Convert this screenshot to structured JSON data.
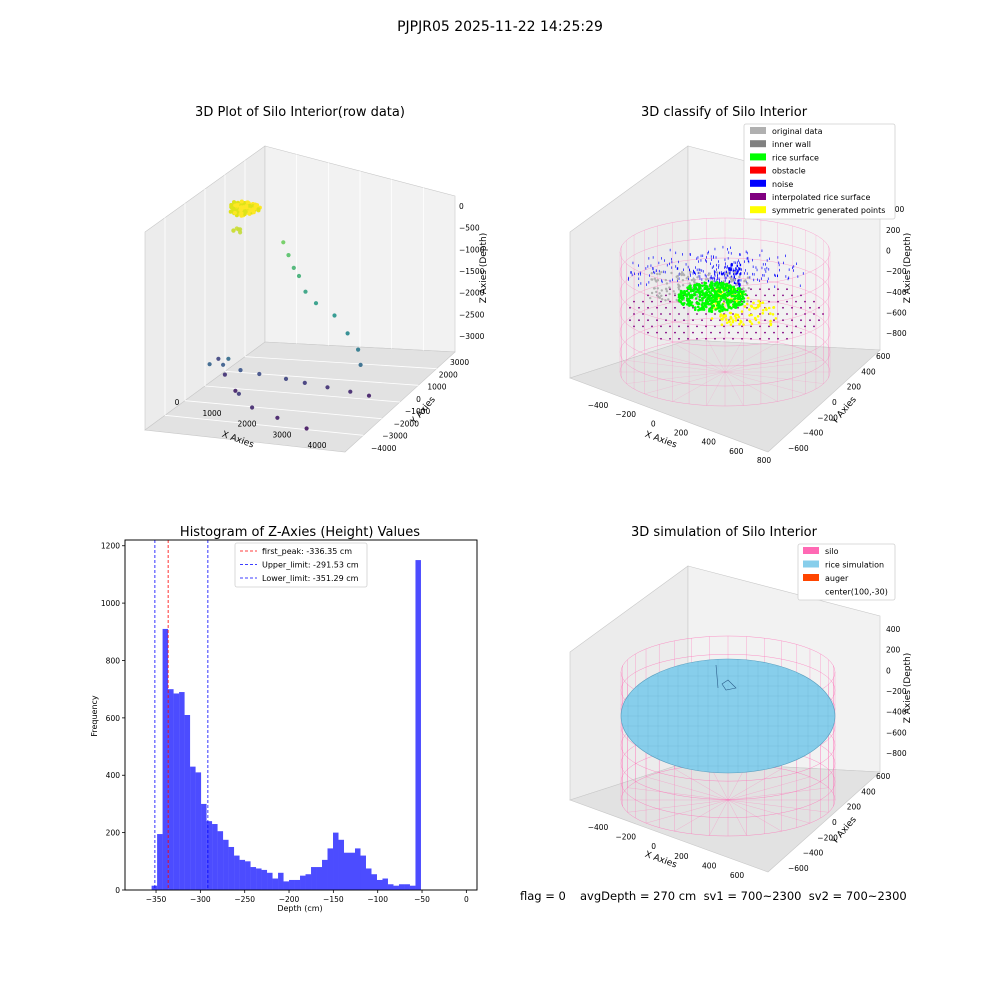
{
  "figure": {
    "suptitle": "PJPJR05 2025-11-22 14:25:29",
    "footer": {
      "flag": "flag = 0",
      "info": "avgDepth = 270 cm  sv1 = 700~2300  sv2 = 700~2300"
    }
  },
  "chart_data": [
    {
      "type": "scatter",
      "projection": "3d",
      "title": "3D Plot of Silo Interior(row data)",
      "xlabel": "X Axies",
      "ylabel": "Y Axies",
      "zlabel": "Z Axies (Depth)",
      "x_ticks": [
        "0",
        "1000",
        "2000",
        "3000",
        "4000"
      ],
      "y_ticks": [
        "3000",
        "2000",
        "1000",
        "0",
        "−1000",
        "−2000",
        "−3000",
        "−4000"
      ],
      "z_ticks": [
        "0",
        "−500",
        "−1000",
        "−1500",
        "−2000",
        "−2500",
        "−3000"
      ],
      "xlim": [
        -500,
        4500
      ],
      "ylim": [
        -4500,
        3500
      ],
      "zlim": [
        -3300,
        200
      ],
      "colormap": "viridis",
      "grid": true,
      "series": [
        {
          "x": [
            300,
            350,
            400,
            450,
            380,
            320,
            1100,
            1300,
            1500,
            1700,
            2000,
            2400,
            3000,
            3500,
            3900,
            4100,
            800,
            1200,
            1600,
            2200,
            2600,
            3100,
            3600,
            4000,
            600,
            1000,
            1400,
            1800,
            2500,
            3300,
            200,
            500,
            900
          ],
          "y": [
            -400,
            -300,
            -200,
            -350,
            -250,
            -450,
            900,
            700,
            500,
            300,
            -100,
            -500,
            -900,
            -1400,
            -1800,
            -2200,
            -2600,
            -2500,
            -2300,
            -2100,
            -1900,
            -1700,
            -1500,
            -1300,
            -3000,
            -2800,
            -3200,
            -3400,
            -3600,
            -3800,
            -1200,
            -1600,
            -2000
          ],
          "z": [
            -80,
            -60,
            -100,
            -120,
            -90,
            -70,
            -600,
            -800,
            -1000,
            -1100,
            -1300,
            -1400,
            -1500,
            -1700,
            -1900,
            -2100,
            -2300,
            -2400,
            -2500,
            -2600,
            -2700,
            -2800,
            -2900,
            -3000,
            -2200,
            -2100,
            -2700,
            -2900,
            -3000,
            -3100,
            -2600,
            -2800,
            -3000
          ]
        }
      ]
    },
    {
      "type": "scatter",
      "projection": "3d",
      "title": "3D classify of Silo Interior",
      "xlabel": "X Axies",
      "ylabel": "Y Axies",
      "zlabel": "Z Axies (Depth)",
      "x_ticks": [
        "−400",
        "−200",
        "0",
        "200",
        "400",
        "600",
        "800"
      ],
      "y_ticks": [
        "600",
        "400",
        "200",
        "0",
        "−200",
        "−400",
        "−600"
      ],
      "z_ticks": [
        "200",
        "0",
        "−200",
        "−400",
        "−600",
        "−800"
      ],
      "xlim": [
        -500,
        850
      ],
      "ylim": [
        -650,
        650
      ],
      "zlim": [
        -900,
        300
      ],
      "legend": {
        "position": "upper right",
        "entries": [
          {
            "label": "original data",
            "color": "#b0b0b0"
          },
          {
            "label": "inner wall",
            "color": "#808080"
          },
          {
            "label": "rice surface",
            "color": "#00ff00"
          },
          {
            "label": "obstacle",
            "color": "#ff0000"
          },
          {
            "label": "noise",
            "color": "#0000ff"
          },
          {
            "label": "interpolated rice surface",
            "color": "#800080"
          },
          {
            "label": "symmetric generated points",
            "color": "#ffff00"
          }
        ]
      },
      "z_tick_partially_hidden": "400",
      "silo_wireframe_color": "#ff69b4",
      "grid": true
    },
    {
      "type": "bar",
      "title": "Histogram of Z-Axies (Height) Values",
      "xlabel": "Depth (cm)",
      "ylabel": "Frequency",
      "bar_color": "#0000ff",
      "bin_edges_start": -355,
      "bin_width": 6.2,
      "values": [
        15,
        195,
        910,
        700,
        685,
        690,
        610,
        430,
        410,
        300,
        240,
        230,
        205,
        175,
        150,
        120,
        105,
        100,
        80,
        75,
        70,
        60,
        40,
        60,
        30,
        35,
        35,
        50,
        55,
        80,
        80,
        105,
        145,
        200,
        175,
        130,
        130,
        145,
        120,
        75,
        55,
        35,
        40,
        20,
        15,
        20,
        20,
        15,
        1150
      ],
      "xlim": [
        -385,
        12
      ],
      "ylim": [
        0,
        1220
      ],
      "x_ticks": [
        -350,
        -300,
        -250,
        -200,
        -150,
        -100,
        -50,
        0
      ],
      "y_ticks": [
        0,
        200,
        400,
        600,
        800,
        1000,
        1200
      ],
      "vlines": [
        {
          "x": -336.35,
          "color": "#ff0000",
          "label": "first_peak: -336.35 cm"
        },
        {
          "x": -291.53,
          "color": "#0000ff",
          "label": "Upper_limit: -291.53 cm"
        },
        {
          "x": -351.29,
          "color": "#0000ff",
          "label": "Lower_limit: -351.29 cm"
        }
      ],
      "legend": {
        "position": "upper center"
      },
      "grid": false
    },
    {
      "type": "surface",
      "projection": "3d",
      "title": "3D simulation of Silo Interior",
      "xlabel": "X Axies",
      "ylabel": "Y Axies",
      "zlabel": "Z Axies (Depth)",
      "x_ticks": [
        "−400",
        "−200",
        "0",
        "200",
        "400",
        "600"
      ],
      "y_ticks": [
        "600",
        "400",
        "200",
        "0",
        "−200",
        "−400",
        "−600"
      ],
      "z_ticks": [
        "400",
        "200",
        "0",
        "−200",
        "−400",
        "−600",
        "−800"
      ],
      "xlim": [
        -500,
        700
      ],
      "ylim": [
        -650,
        650
      ],
      "zlim": [
        -900,
        450
      ],
      "legend": {
        "position": "upper right",
        "entries": [
          {
            "label": "silo",
            "color": "#ff69b4"
          },
          {
            "label": "rice simulation",
            "color": "#87ceeb"
          },
          {
            "label": "auger",
            "color": "#ff4500"
          },
          {
            "label": "center(100,-30)",
            "color": "#ffffff"
          }
        ]
      },
      "grid": true
    }
  ]
}
